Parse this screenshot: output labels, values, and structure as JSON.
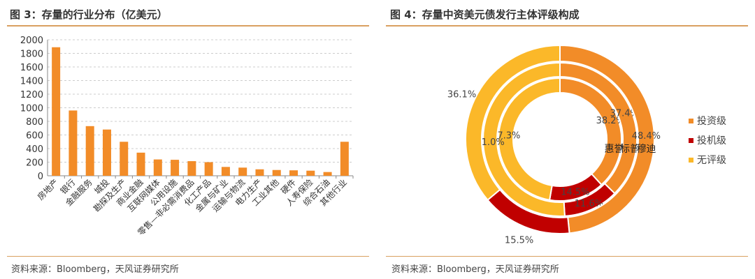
{
  "left": {
    "title": "图 3：存量的行业分布（亿美元）",
    "source": "资料来源：Bloomberg，天风证券研究所"
  },
  "right": {
    "title": "图 4：存量中资美元债发行主体评级构成",
    "source": "资料来源：Bloomberg，天风证券研究所"
  },
  "colors": {
    "bar": "#f28c28",
    "invest": "#f28c28",
    "spec": "#c00000",
    "none": "#fbb829",
    "rule": "#d9a060"
  },
  "chart_data": [
    {
      "type": "bar",
      "title": "存量的行业分布（亿美元）",
      "ylim": [
        0,
        2000
      ],
      "yticks": [
        0,
        200,
        400,
        600,
        800,
        1000,
        1200,
        1400,
        1600,
        1800,
        2000
      ],
      "grid": true,
      "categories": [
        "房地产",
        "银行",
        "金融服务",
        "城投",
        "勘探及生产",
        "商业金融",
        "互联网媒体",
        "公用设施",
        "零售—非必需消费品",
        "化工产品",
        "金属与矿业",
        "运输与物流",
        "电力生产",
        "工业其他",
        "硬件",
        "人寿保险",
        "综合石油",
        "其他行业"
      ],
      "values": [
        1890,
        960,
        730,
        680,
        500,
        340,
        240,
        235,
        215,
        200,
        130,
        120,
        95,
        85,
        80,
        75,
        55,
        500
      ]
    },
    {
      "type": "pie",
      "subtype": "multi-ring donut",
      "legend_position": "right",
      "legend": [
        "投资级",
        "投机级",
        "无评级"
      ],
      "rings": [
        {
          "name": "惠誉",
          "values": [
            38.2,
            14.5,
            47.3
          ],
          "labels": [
            "38.2%",
            "14.5%",
            "47.3%"
          ]
        },
        {
          "name": "标普",
          "values": [
            37.4,
            11.6,
            51.0
          ],
          "labels": [
            "37.4%",
            "11.6%",
            "51.0%"
          ]
        },
        {
          "name": "穆迪",
          "values": [
            48.4,
            15.5,
            36.1
          ],
          "labels": [
            "48.4%",
            "15.5%",
            "36.1%"
          ]
        }
      ]
    }
  ]
}
